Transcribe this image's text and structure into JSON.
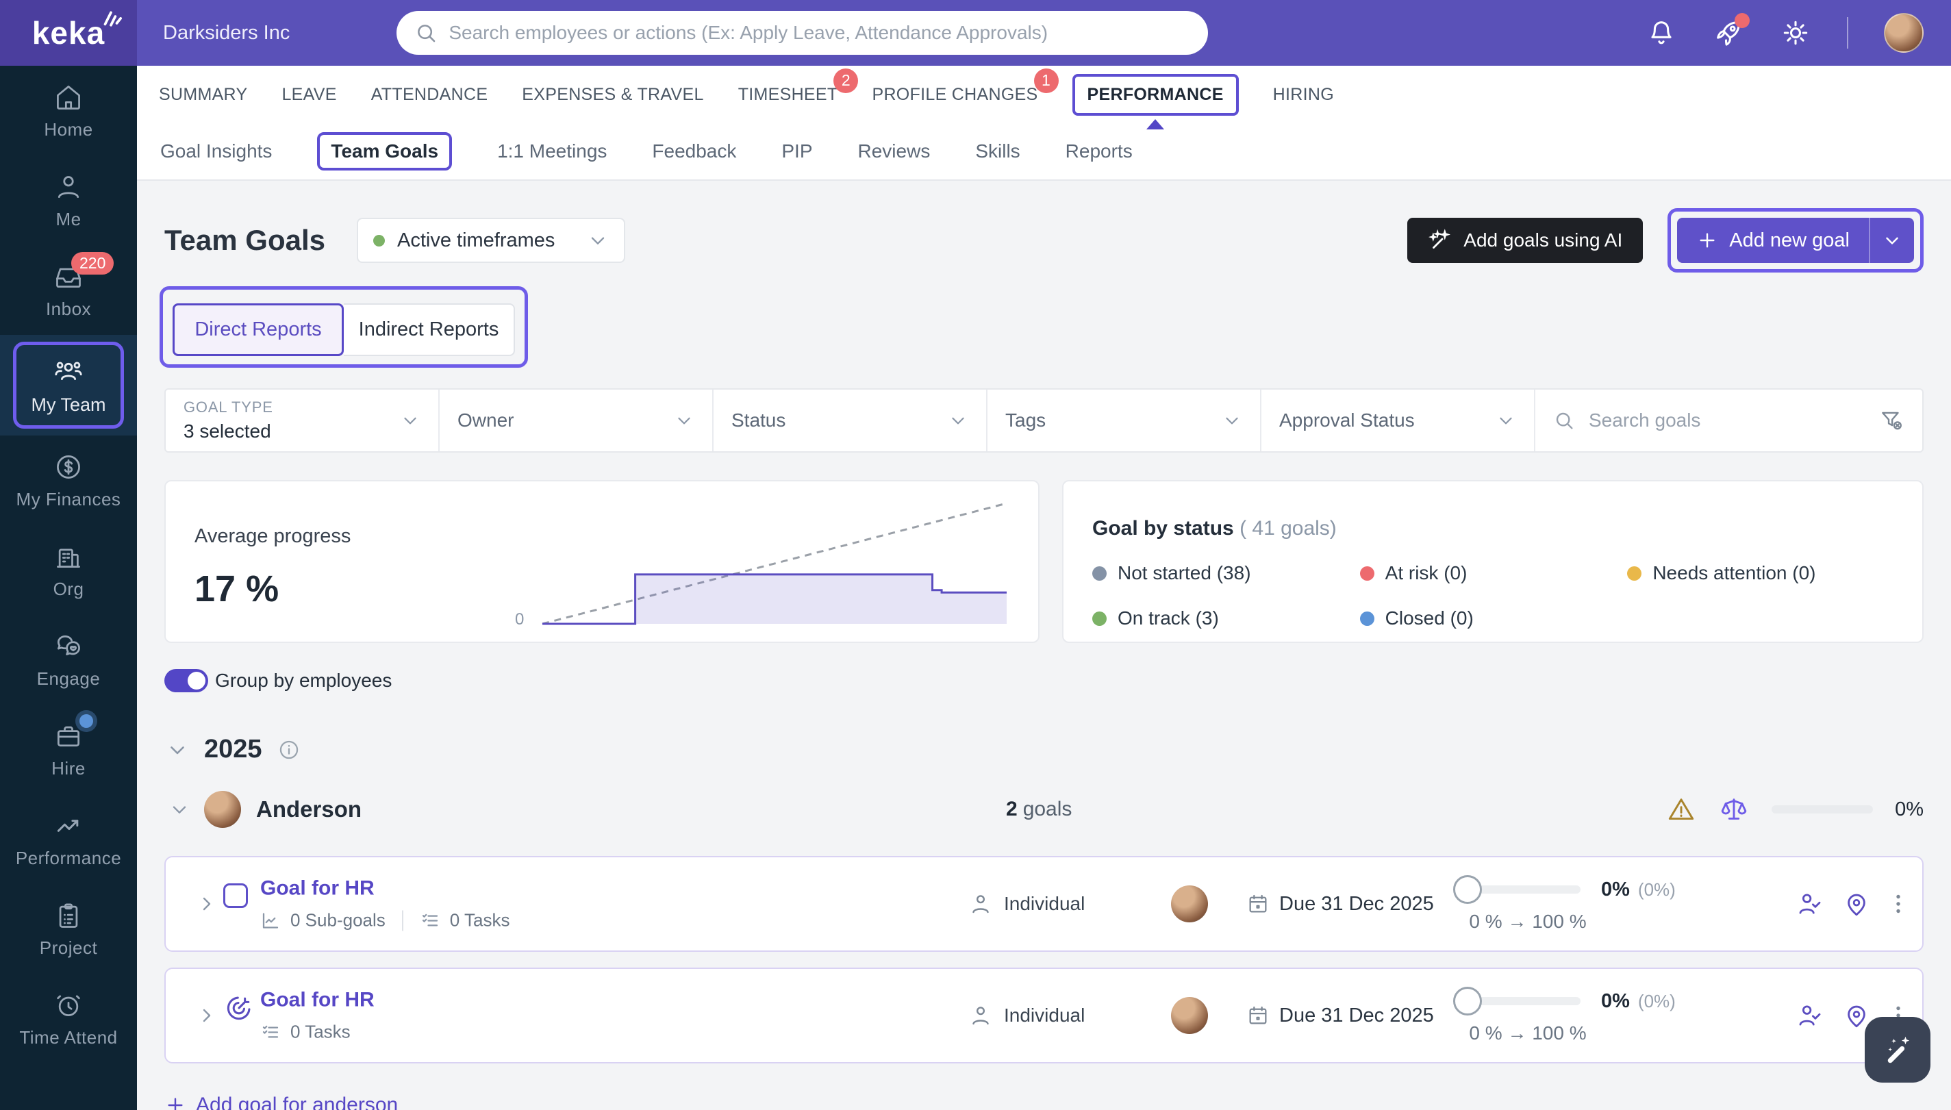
{
  "brand": {
    "logo_text": "keka",
    "company": "Darksiders Inc"
  },
  "topbar": {
    "search_placeholder": "Search employees or actions (Ex: Apply Leave, Attendance Approvals)"
  },
  "sidebar": {
    "items": [
      {
        "label": "Home"
      },
      {
        "label": "Me"
      },
      {
        "label": "Inbox",
        "badge": "220"
      },
      {
        "label": "My Team",
        "active": true
      },
      {
        "label": "My Finances"
      },
      {
        "label": "Org"
      },
      {
        "label": "Engage"
      },
      {
        "label": "Hire",
        "notification_dot": true
      },
      {
        "label": "Performance"
      },
      {
        "label": "Project"
      },
      {
        "label": "Time Attend"
      }
    ]
  },
  "main_nav": [
    {
      "label": "SUMMARY"
    },
    {
      "label": "LEAVE"
    },
    {
      "label": "ATTENDANCE"
    },
    {
      "label": "EXPENSES & TRAVEL"
    },
    {
      "label": "TIMESHEET",
      "badge": "2"
    },
    {
      "label": "PROFILE CHANGES",
      "badge": "1"
    },
    {
      "label": "PERFORMANCE",
      "active": true
    },
    {
      "label": "HIRING"
    }
  ],
  "sub_nav": [
    {
      "label": "Goal Insights"
    },
    {
      "label": "Team Goals",
      "active": true
    },
    {
      "label": "1:1 Meetings"
    },
    {
      "label": "Feedback"
    },
    {
      "label": "PIP"
    },
    {
      "label": "Reviews"
    },
    {
      "label": "Skills"
    },
    {
      "label": "Reports"
    }
  ],
  "header": {
    "title": "Team Goals",
    "timeframe": "Active timeframes",
    "timeframe_dot_color": "#7cb266",
    "ai_button": "Add goals using AI",
    "add_button": "Add new goal",
    "tab_direct": "Direct Reports",
    "tab_indirect": "Indirect Reports"
  },
  "filters": {
    "goal_type_label": "GOAL TYPE",
    "goal_type_value": "3 selected",
    "owner": "Owner",
    "status": "Status",
    "tags": "Tags",
    "approval": "Approval Status",
    "search_placeholder": "Search goals"
  },
  "summary": {
    "avg_label": "Average progress",
    "avg_value": "17 %",
    "axis_zero": "0",
    "status_title": "Goal by status",
    "status_total": "( 41 goals)",
    "statuses": [
      {
        "label": "Not started (38)",
        "color": "#8492a6"
      },
      {
        "label": "At risk (0)",
        "color": "#ed6a6e"
      },
      {
        "label": "Needs attention (0)",
        "color": "#e9b84a"
      },
      {
        "label": "On track (3)",
        "color": "#7cb266"
      },
      {
        "label": "Closed (0)",
        "color": "#5b93d7"
      }
    ]
  },
  "chart_data": {
    "type": "area",
    "title": "Average progress",
    "current_value_pct": 17,
    "x_range": [
      0,
      100
    ],
    "y_range": [
      0,
      100
    ],
    "grid": false,
    "axis_zero_label": "0",
    "expected_dashed_line": [
      [
        0,
        0
      ],
      [
        100,
        100
      ]
    ],
    "series": [
      {
        "name": "Average progress",
        "points": [
          [
            0,
            0
          ],
          [
            20,
            0
          ],
          [
            20,
            41
          ],
          [
            84,
            41
          ],
          [
            84,
            28
          ],
          [
            86,
            28
          ],
          [
            86,
            26
          ],
          [
            100,
            26
          ]
        ]
      }
    ],
    "status_counts": {
      "total_goals": 41,
      "Not started": 38,
      "At risk": 0,
      "Needs attention": 0,
      "On track": 3,
      "Closed": 0
    }
  },
  "list": {
    "group_toggle_label": "Group by employees",
    "group_toggle_on": true,
    "year": "2025",
    "employee": {
      "name": "Anderson",
      "goals_bold": "2",
      "goals_rest": "goals",
      "progress": "0%"
    },
    "arrow": "→",
    "goals": [
      {
        "title": "Goal for HR",
        "subgoals": "0 Sub-goals",
        "tasks": "0 Tasks",
        "type": "Individual",
        "due": "Due 31 Dec 2025",
        "pct": "0%",
        "pct_paren": "(0%)",
        "range_from": "0 %",
        "range_to": "100 %"
      },
      {
        "title": "Goal for HR",
        "tasks": "0 Tasks",
        "type": "Individual",
        "due": "Due 31 Dec 2025",
        "pct": "0%",
        "pct_paren": "(0%)",
        "range_from": "0 %",
        "range_to": "100 %"
      }
    ],
    "add_goal_label": "Add goal for anderson"
  }
}
